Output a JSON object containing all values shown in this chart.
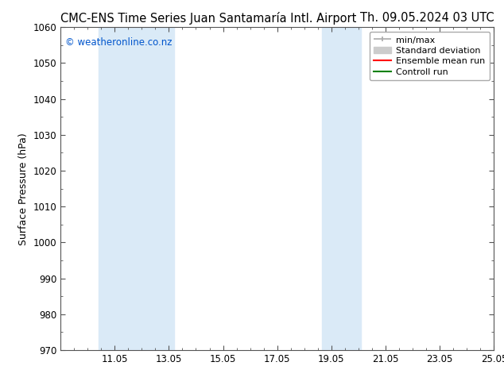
{
  "title_left": "CMC-ENS Time Series Juan Santamaría Intl. Airport",
  "title_right": "Th. 09.05.2024 03 UTC",
  "ylabel": "Surface Pressure (hPa)",
  "watermark": "© weatheronline.co.nz",
  "ylim": [
    970,
    1060
  ],
  "yticks": [
    970,
    980,
    990,
    1000,
    1010,
    1020,
    1030,
    1040,
    1050,
    1060
  ],
  "xlim": [
    9.05,
    25.05
  ],
  "xticks": [
    11.05,
    13.05,
    15.05,
    17.05,
    19.05,
    21.05,
    23.05,
    25.05
  ],
  "xticklabels": [
    "11.05",
    "13.05",
    "15.05",
    "17.05",
    "19.05",
    "21.05",
    "23.05",
    "25.05"
  ],
  "shaded_regions": [
    {
      "xmin": 10.45,
      "xmax": 13.25,
      "color": "#daeaf7"
    },
    {
      "xmin": 18.7,
      "xmax": 20.15,
      "color": "#daeaf7"
    }
  ],
  "legend_entries": [
    {
      "label": "min/max",
      "color": "#aaaaaa",
      "lw": 1.2
    },
    {
      "label": "Standard deviation",
      "color": "#cccccc",
      "lw": 7
    },
    {
      "label": "Ensemble mean run",
      "color": "#ff0000",
      "lw": 1.5
    },
    {
      "label": "Controll run",
      "color": "#008000",
      "lw": 1.5
    }
  ],
  "bg_color": "#ffffff",
  "plot_bg_color": "#ffffff",
  "title_fontsize": 10.5,
  "tick_fontsize": 8.5,
  "label_fontsize": 9,
  "watermark_color": "#0055cc",
  "watermark_fontsize": 8.5,
  "legend_fontsize": 8
}
